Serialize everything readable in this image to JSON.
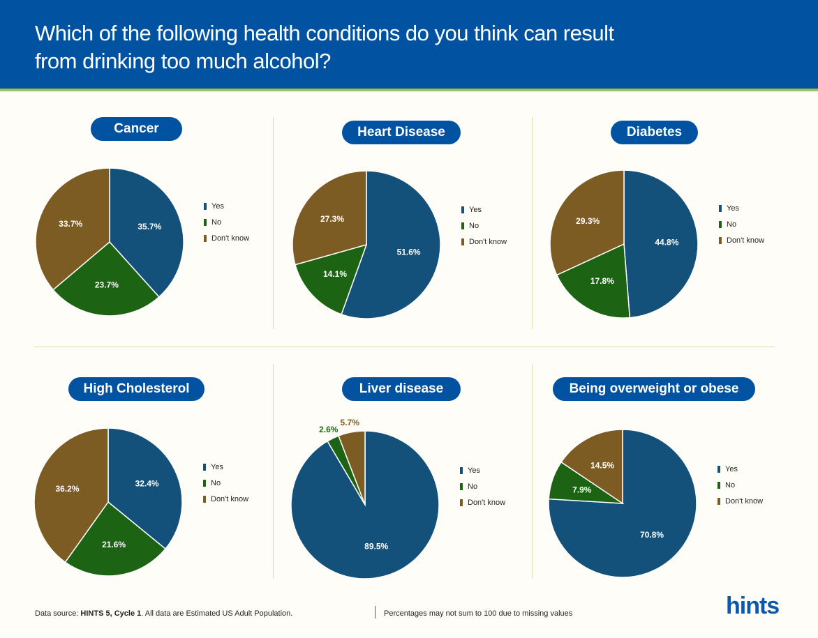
{
  "header": {
    "title_line1": "Which of the following health conditions do you think can result",
    "title_line2": "from drinking too much alcohol?"
  },
  "colors": {
    "header_blue": "#0153a1",
    "accent_green_stripe": "#9dc45b",
    "yes": "#13507a",
    "no": "#1c6414",
    "dont_know": "#7d5c23",
    "background": "#fffdf7"
  },
  "legend_labels": [
    "Yes",
    "No",
    "Don't know"
  ],
  "chart_data": [
    {
      "type": "pie",
      "title": "Cancer",
      "categories": [
        "Yes",
        "No",
        "Don't know"
      ],
      "values": [
        35.7,
        23.7,
        33.7
      ],
      "labels": [
        "35.7%",
        "23.7%",
        "33.7%"
      ],
      "legend": "right"
    },
    {
      "type": "pie",
      "title": "Heart Disease",
      "categories": [
        "Yes",
        "No",
        "Don't know"
      ],
      "values": [
        51.6,
        14.1,
        27.3
      ],
      "labels": [
        "51.6%",
        "14.1%",
        "27.3%"
      ],
      "legend": "right"
    },
    {
      "type": "pie",
      "title": "Diabetes",
      "categories": [
        "Yes",
        "No",
        "Don't know"
      ],
      "values": [
        44.8,
        17.8,
        29.3
      ],
      "labels": [
        "44.8%",
        "17.8%",
        "29.3%"
      ],
      "legend": "right"
    },
    {
      "type": "pie",
      "title": "High Cholesterol",
      "categories": [
        "Yes",
        "No",
        "Don't know"
      ],
      "values": [
        32.4,
        21.6,
        36.2
      ],
      "labels": [
        "32.4%",
        "21.6%",
        "36.2%"
      ],
      "legend": "right"
    },
    {
      "type": "pie",
      "title": "Liver disease",
      "categories": [
        "Yes",
        "No",
        "Don't know"
      ],
      "values": [
        89.5,
        2.6,
        5.7
      ],
      "labels": [
        "89.5%",
        "2.6%",
        "5.7%"
      ],
      "legend": "right"
    },
    {
      "type": "pie",
      "title": "Being overweight or obese",
      "categories": [
        "Yes",
        "No",
        "Don't know"
      ],
      "values": [
        70.8,
        7.9,
        14.5
      ],
      "labels": [
        "70.8%",
        "7.9%",
        "14.5%"
      ],
      "legend": "right"
    }
  ],
  "footer": {
    "source_prefix": "Data source: ",
    "source_bold": "HINTS 5, Cycle 1",
    "source_suffix": ". All data are Estimated US Adult Population.",
    "note": "Percentages may not sum to 100 due to missing values",
    "logo": "hints"
  }
}
